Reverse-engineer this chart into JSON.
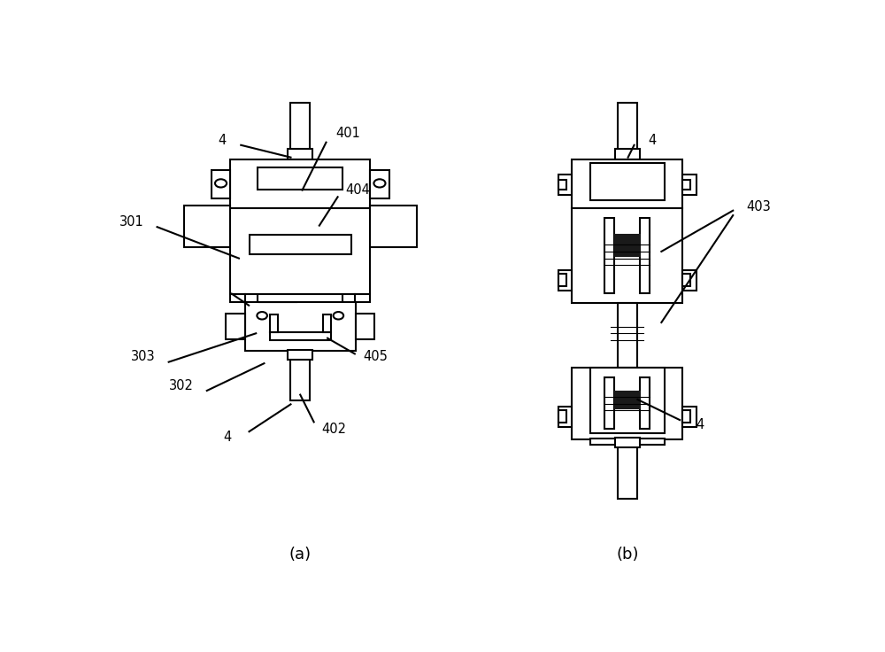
{
  "bg_color": "#ffffff",
  "lc": "#000000",
  "lw": 1.5,
  "fig_w": 10.0,
  "fig_h": 7.36,
  "label_a": "(a)",
  "label_b": "(b)"
}
